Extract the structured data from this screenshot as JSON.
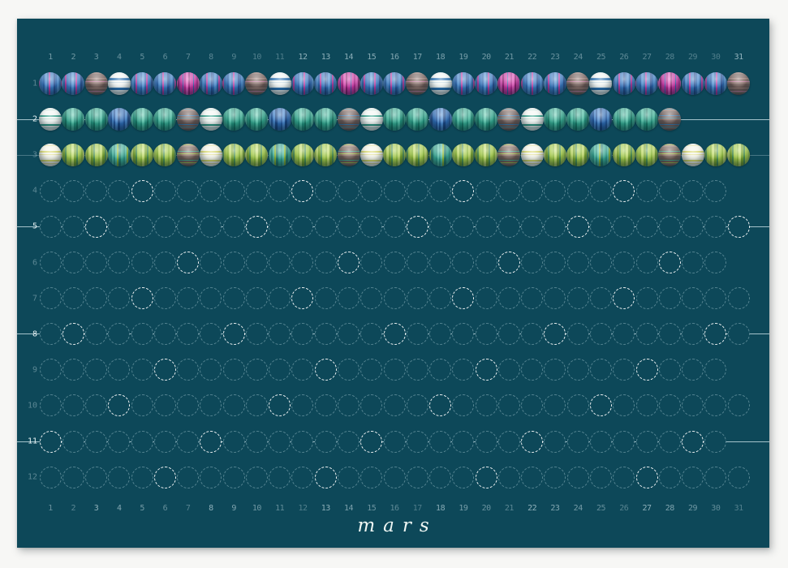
{
  "title": "mars",
  "poster": {
    "kind": "annual-bead-calendar",
    "day_labels": [
      "1",
      "2",
      "3",
      "4",
      "5",
      "6",
      "7",
      "8",
      "9",
      "10",
      "11",
      "12",
      "13",
      "14",
      "15",
      "16",
      "17",
      "18",
      "19",
      "20",
      "21",
      "22",
      "23",
      "24",
      "25",
      "26",
      "27",
      "28",
      "29",
      "30",
      "31"
    ],
    "row_labels": [
      "1",
      "2",
      "3",
      "4",
      "5",
      "6",
      "7",
      "8",
      "9",
      "10",
      "11",
      "12"
    ],
    "months": [
      {
        "label": "1",
        "days": 31,
        "state": "filled",
        "palette": "blue",
        "white_days": [
          4,
          11,
          18,
          25
        ],
        "accent_days": [
          7,
          14,
          21,
          28
        ],
        "brown_days": [
          3,
          10,
          17,
          24,
          31
        ],
        "thread": "none"
      },
      {
        "label": "2",
        "days": 28,
        "state": "filled",
        "palette": "teal",
        "white_days": [
          1,
          8,
          15,
          22
        ],
        "accent_days": [
          4,
          11,
          18,
          25
        ],
        "brown_days": [
          7,
          14,
          21,
          28
        ],
        "thread": "strong"
      },
      {
        "label": "3",
        "days": 31,
        "state": "filled",
        "palette": "green",
        "white_days": [
          1,
          8,
          15,
          22,
          29
        ],
        "accent_days": [
          4,
          11,
          18,
          25
        ],
        "brown_days": [
          7,
          14,
          21,
          28
        ],
        "thread": "faint"
      },
      {
        "label": "4",
        "days": 30,
        "state": "empty",
        "bright_days": [
          5,
          12,
          19,
          26
        ],
        "thread": "none"
      },
      {
        "label": "5",
        "days": 31,
        "state": "empty",
        "bright_days": [
          3,
          10,
          17,
          24,
          31
        ],
        "thread": "strong"
      },
      {
        "label": "6",
        "days": 30,
        "state": "empty",
        "bright_days": [
          7,
          14,
          21,
          28
        ],
        "thread": "none"
      },
      {
        "label": "7",
        "days": 31,
        "state": "empty",
        "bright_days": [
          5,
          12,
          19,
          26
        ],
        "thread": "none"
      },
      {
        "label": "8",
        "days": 31,
        "state": "empty",
        "bright_days": [
          2,
          9,
          16,
          23,
          30
        ],
        "thread": "strong"
      },
      {
        "label": "9",
        "days": 30,
        "state": "empty",
        "bright_days": [
          6,
          13,
          20,
          27
        ],
        "thread": "none"
      },
      {
        "label": "10",
        "days": 31,
        "state": "empty",
        "bright_days": [
          4,
          11,
          18,
          25
        ],
        "thread": "none"
      },
      {
        "label": "11",
        "days": 30,
        "state": "empty",
        "bright_days": [
          1,
          8,
          15,
          22,
          29
        ],
        "thread": "strong"
      },
      {
        "label": "12",
        "days": 31,
        "state": "empty",
        "bright_days": [
          6,
          13,
          20,
          27
        ],
        "thread": "none"
      }
    ]
  },
  "colors": {
    "page_background": "#f7f7f5",
    "poster_background": "#0d4859",
    "thread_line": "#dff2f7",
    "dashed_circle": "#c4e0e8",
    "sunday_circle_bright": "#ffffff",
    "day_number": "#c6dde4",
    "title_text": "#eef6f3",
    "january_blue": "#3a78c0",
    "january_magenta": "#c935a2",
    "february_teal": "#35a98f",
    "february_blue": "#2f6cb5",
    "march_green": "#a5cc4a",
    "march_teal": "#3aa892",
    "saturday_brown": "#7a615b",
    "sunday_white": "#f2f7f3"
  }
}
